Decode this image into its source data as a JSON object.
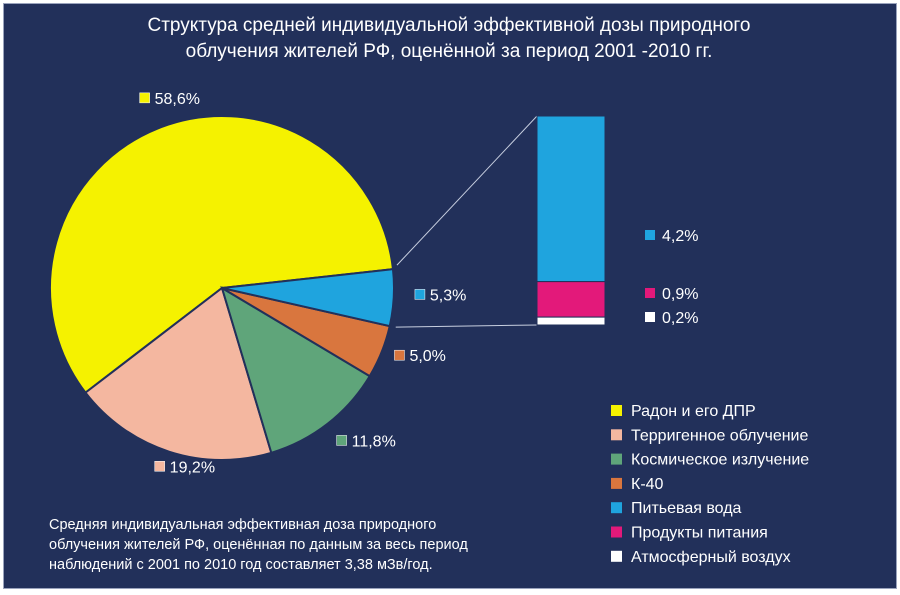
{
  "chart_data": {
    "type": "pie",
    "title": [
      "Структура средней индивидуальной эффективной дозы природного",
      "облучения жителей РФ, оценённой за период 2001 -2010 гг."
    ],
    "slices": [
      {
        "name": "Радон и его ДПР",
        "value": 58.6,
        "label": "58,6%",
        "color": "#f5f200"
      },
      {
        "name": "Терригенное облучение",
        "value": 19.2,
        "label": "19,2%",
        "color": "#f4b7a0"
      },
      {
        "name": "Космическое излучение",
        "value": 11.8,
        "label": "11,8%",
        "color": "#5fa57a"
      },
      {
        "name": "К-40",
        "value": 5.0,
        "label": "5,0%",
        "color": "#d9763e"
      },
      {
        "name": "Питьевая вода + Продукты питания + Атмосферный воздух",
        "value": 5.3,
        "label": "5,3%",
        "color": "#1fa4de"
      }
    ],
    "breakdown": {
      "of": "5,3%",
      "type": "stacked-bar",
      "items": [
        {
          "name": "Питьевая вода",
          "value": 4.2,
          "label": "4,2%",
          "color": "#1fa4de"
        },
        {
          "name": "Продукты питания",
          "value": 0.9,
          "label": "0,9%",
          "color": "#e3197a"
        },
        {
          "name": "Атмосферный воздух",
          "value": 0.2,
          "label": "0,2%",
          "color": "#ffffff"
        }
      ]
    },
    "legend": [
      {
        "label": "Радон и его ДПР",
        "color": "#f5f200"
      },
      {
        "label": "Терригенное облучение",
        "color": "#f4b7a0"
      },
      {
        "label": "Космическое излучение",
        "color": "#5fa57a"
      },
      {
        "label": "К-40",
        "color": "#d9763e"
      },
      {
        "label": "Питьевая вода",
        "color": "#1fa4de"
      },
      {
        "label": "Продукты питания",
        "color": "#e3197a"
      },
      {
        "label": "Атмосферный воздух",
        "color": "#ffffff"
      }
    ],
    "legend_position": "bottom-right",
    "note": [
      "Средняя индивидуальная эффективная доза природного",
      "облучения жителей РФ, оценённая по данным за весь период",
      "наблюдений с 2001 по 2010 год составляет 3,38 мЗв/год."
    ],
    "background_color": "#22305a"
  }
}
